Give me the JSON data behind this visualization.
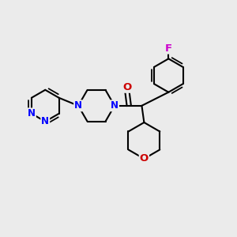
{
  "background_color": "#ebebeb",
  "bond_color": "#000000",
  "bond_width": 1.5,
  "atom_colors": {
    "N": "#0000ff",
    "O": "#cc0000",
    "F": "#cc00cc",
    "C": "#000000"
  },
  "font_size": 8.5,
  "fig_width": 3.0,
  "fig_height": 3.0,
  "dpi": 100
}
